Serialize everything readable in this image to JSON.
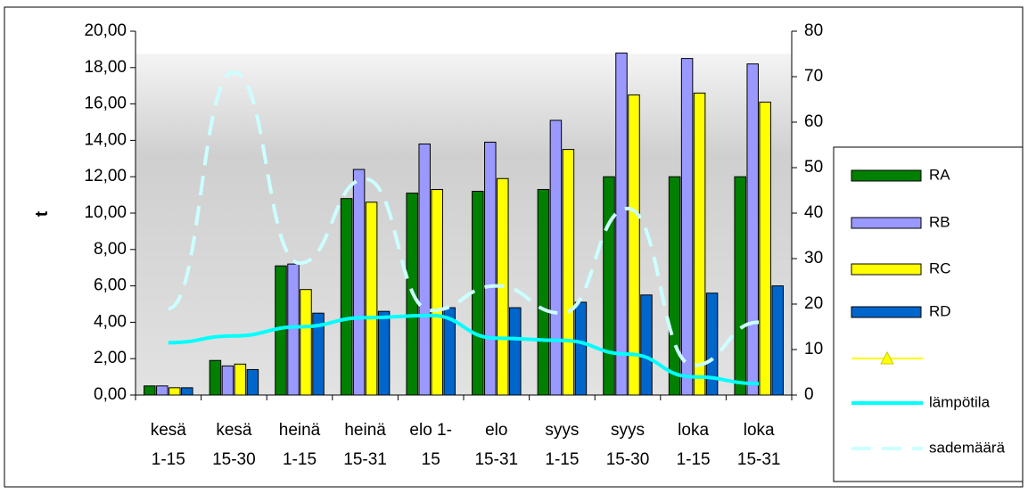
{
  "chart_data": {
    "type": "bar",
    "y_label": "t",
    "categories": [
      [
        "kesä",
        "1-15"
      ],
      [
        "kesä",
        "15-30"
      ],
      [
        "heinä",
        "1-15"
      ],
      [
        "heinä",
        "15-31"
      ],
      [
        "elo 1-",
        "15"
      ],
      [
        "elo",
        "15-31"
      ],
      [
        "syys",
        "1-15"
      ],
      [
        "syys",
        "15-30"
      ],
      [
        "loka",
        "1-15"
      ],
      [
        "loka",
        "15-31"
      ]
    ],
    "series": [
      {
        "name": "RA",
        "color": "#007f00",
        "values": [
          0.5,
          1.9,
          7.1,
          10.8,
          11.1,
          11.2,
          11.3,
          12.0,
          12.0,
          12.0
        ]
      },
      {
        "name": "RB",
        "color": "#9999ff",
        "values": [
          0.5,
          1.6,
          7.2,
          12.4,
          13.8,
          13.9,
          15.1,
          18.8,
          18.5,
          18.2
        ]
      },
      {
        "name": "RC",
        "color": "#ffff00",
        "values": [
          0.4,
          1.7,
          5.8,
          10.6,
          11.3,
          11.9,
          13.5,
          16.5,
          16.6,
          16.1
        ]
      },
      {
        "name": "RD",
        "color": "#0066cc",
        "values": [
          0.4,
          1.4,
          4.5,
          4.6,
          4.8,
          4.8,
          5.1,
          5.5,
          5.6,
          6.0
        ]
      },
      {
        "name": null,
        "type": "line",
        "marker": "triangle",
        "color": "#ffff00",
        "axis": "y2",
        "values": [
          null,
          null,
          null,
          null,
          null,
          null,
          null,
          null,
          null,
          null
        ]
      },
      {
        "name": "lämpötila",
        "type": "line",
        "color": "#00ffff",
        "axis": "y2",
        "values": [
          11.5,
          13,
          15,
          17,
          17.5,
          12.5,
          12,
          9,
          4,
          2.5
        ]
      },
      {
        "name": "sademäärä",
        "type": "line",
        "dash": true,
        "color": "#ccffff",
        "axis": "y2",
        "values": [
          19,
          71,
          29,
          47.5,
          18.6,
          24,
          18,
          41,
          6.5,
          16
        ]
      }
    ],
    "ylim": [
      0,
      20
    ],
    "yticks": [
      {
        "value": 0,
        "label": "0,00"
      },
      {
        "value": 2,
        "label": "2,00"
      },
      {
        "value": 4,
        "label": "4,00"
      },
      {
        "value": 6,
        "label": "6,00"
      },
      {
        "value": 8,
        "label": "8,00"
      },
      {
        "value": 10,
        "label": "10,00"
      },
      {
        "value": 12,
        "label": "12,00"
      },
      {
        "value": 14,
        "label": "14,00"
      },
      {
        "value": 16,
        "label": "16,00"
      },
      {
        "value": 18,
        "label": "18,00"
      },
      {
        "value": 20,
        "label": "20,00"
      }
    ],
    "y2lim": [
      0,
      80
    ],
    "y2ticks": [
      0,
      10,
      20,
      30,
      40,
      50,
      60,
      70,
      80
    ]
  }
}
